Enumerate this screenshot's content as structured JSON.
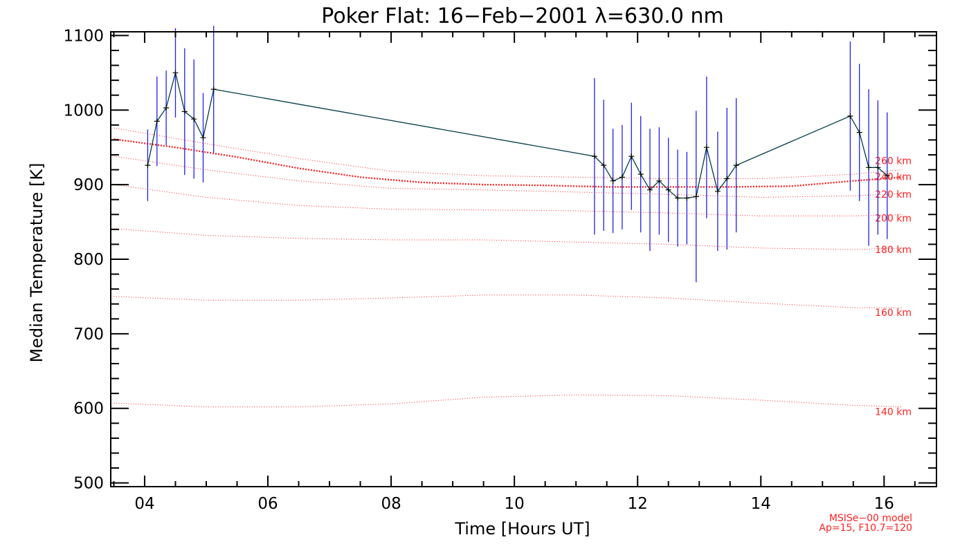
{
  "chart_data": {
    "type": "line",
    "title": "Poker Flat: 16−Feb−2001 λ=630.0 nm",
    "xlabel": "Time [Hours UT]",
    "ylabel": "Median Temperature [K]",
    "xlim": [
      3.45,
      16.85
    ],
    "ylim": [
      495,
      1105
    ],
    "x_ticks": [
      4,
      6,
      8,
      10,
      12,
      14,
      16
    ],
    "x_tick_labels": [
      "04",
      "06",
      "08",
      "10",
      "12",
      "14",
      "16"
    ],
    "x_minor_step": 0.5,
    "y_ticks": [
      500,
      600,
      700,
      800,
      900,
      1000,
      1100
    ],
    "y_tick_labels": [
      "500",
      "600",
      "700",
      "800",
      "900",
      "1000",
      "1100"
    ],
    "y_minor_step": 20,
    "grid": false,
    "colors": {
      "measurement_line": "#003a44",
      "marker": "#000000",
      "error_bar": "#1e1ef0",
      "model": "#ff2020",
      "axis": "#000000"
    },
    "series": [
      {
        "name": "Median temperature",
        "x": [
          4.05,
          4.2,
          4.35,
          4.5,
          4.65,
          4.8,
          4.95,
          5.12,
          11.3,
          11.45,
          11.6,
          11.75,
          11.9,
          12.05,
          12.2,
          12.35,
          12.5,
          12.65,
          12.8,
          12.95,
          13.12,
          13.3,
          13.45,
          13.6,
          15.45,
          15.6,
          15.75,
          15.9,
          16.05
        ],
        "y": [
          926,
          985,
          1003,
          1050,
          998,
          988,
          963,
          1028,
          938,
          926,
          905,
          910,
          938,
          914,
          893,
          905,
          893,
          882,
          882,
          884,
          950,
          891,
          908,
          926,
          992,
          970,
          923,
          923,
          912
        ],
        "err": [
          48,
          60,
          50,
          60,
          85,
          80,
          60,
          85,
          105,
          88,
          70,
          70,
          72,
          78,
          82,
          72,
          70,
          65,
          62,
          115,
          95,
          80,
          95,
          90,
          100,
          92,
          105,
          90,
          85
        ]
      }
    ],
    "model_curves": [
      {
        "label": "260 km",
        "x": [
          3.5,
          5,
          6.5,
          8,
          9.5,
          11,
          12.5,
          14,
          15.5,
          16.3
        ],
        "y": [
          976,
          955,
          935,
          918,
          912,
          910,
          908,
          908,
          914,
          920
        ]
      },
      {
        "label": "240 km",
        "x": [
          3.5,
          4.5,
          5.5,
          6.5,
          7.5,
          8.5,
          9.5,
          10.5,
          11.5,
          12.5,
          13.5,
          14.5,
          15.5,
          16.3
        ],
        "y": [
          961,
          950,
          937,
          922,
          910,
          903,
          900,
          899,
          897,
          897,
          897,
          898,
          905,
          910
        ]
      },
      {
        "label": "220 km",
        "x": [
          3.5,
          5,
          6.5,
          8,
          9.5,
          11,
          12.5,
          14,
          15.5,
          16.3
        ],
        "y": [
          938,
          920,
          905,
          895,
          893,
          890,
          887,
          883,
          885,
          888
        ]
      },
      {
        "label": "200 km",
        "x": [
          3.5,
          5,
          6.5,
          8,
          9.5,
          11,
          12.5,
          14,
          15.5,
          16.3
        ],
        "y": [
          900,
          883,
          872,
          867,
          866,
          865,
          862,
          858,
          858,
          860
        ]
      },
      {
        "label": "180 km",
        "x": [
          3.5,
          5,
          6.5,
          8,
          9.5,
          11,
          12.5,
          14,
          15.5,
          16.3
        ],
        "y": [
          841,
          832,
          828,
          826,
          826,
          823,
          820,
          815,
          813,
          815
        ]
      },
      {
        "label": "160 km",
        "x": [
          3.5,
          5,
          6.5,
          8,
          9.5,
          11,
          12.5,
          14,
          15.5,
          16.3
        ],
        "y": [
          750,
          745,
          745,
          748,
          752,
          752,
          748,
          741,
          735,
          735
        ]
      },
      {
        "label": "140 km",
        "x": [
          3.5,
          5,
          6.5,
          8,
          9.5,
          11,
          12.5,
          14,
          15.5,
          16.3
        ],
        "y": [
          607,
          602,
          602,
          606,
          615,
          618,
          617,
          611,
          604,
          602
        ]
      }
    ],
    "highlighted_model": "240 km",
    "annotations": [
      "MSISe−00 model",
      "Ap=15, F10.7=120"
    ]
  }
}
